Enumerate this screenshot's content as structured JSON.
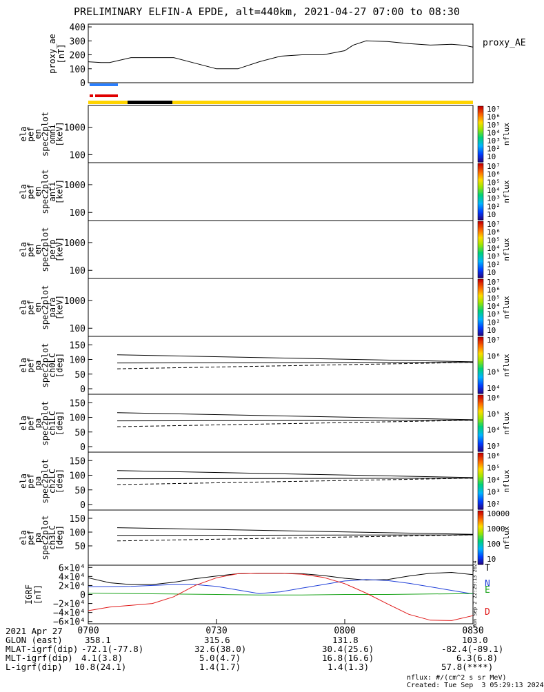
{
  "title": "PRELIMINARY ELFIN-A EPDE, alt=440km, 2021-04-27 07:00 to 08:30",
  "time_labels": [
    "0700",
    "0730",
    "0800",
    "0830"
  ],
  "footer": {
    "date": "2021 Apr 27",
    "rows": [
      {
        "label": "GLON (east)",
        "values": [
          "358.1",
          "315.6",
          "131.8",
          "103.0"
        ]
      },
      {
        "label": "MLAT-igrf(dip)",
        "values": [
          "-72.1(-77.8)",
          "32.6(38.0)",
          "30.4(25.6)",
          "-82.4(-89.1)"
        ]
      },
      {
        "label": "MLT-igrf(dip)",
        "values": [
          "4.1(3.8)",
          "5.0(4.7)",
          "16.8(16.6)",
          "6.3(6.8)"
        ]
      },
      {
        "label": "L-igrf(dip)",
        "values": [
          "10.8(24.1)",
          "1.4(1.7)",
          "1.4(1.3)",
          "57.8(****)"
        ]
      }
    ],
    "units_note": "nflux: #/(cm^2 s sr MeV)",
    "created": "Created: Tue Sep  3 05:29:13 2024",
    "side_stamp": "Mon Sep  2 22:29:13 2024"
  },
  "chart_data": [
    {
      "type": "line",
      "panel": "proxy_ae",
      "ylabel_lines": [
        "proxy_ae",
        "[nT]"
      ],
      "legend": "proxy_AE",
      "ylim": [
        0,
        420
      ],
      "yticks": [
        "400",
        "300",
        "200",
        "100",
        "0"
      ],
      "x": [
        0,
        3,
        5,
        10,
        20,
        30,
        35,
        40,
        45,
        50,
        55,
        60,
        62,
        65,
        70,
        75,
        80,
        85,
        88,
        90
      ],
      "y": [
        150,
        145,
        145,
        180,
        180,
        100,
        100,
        150,
        190,
        200,
        200,
        230,
        270,
        300,
        295,
        280,
        270,
        275,
        268,
        255
      ],
      "x_units": "minutes since 07:00"
    },
    {
      "type": "heatmap",
      "panel": "ela_pef_en_spec2plot_omni",
      "ylabel_lines": [
        "ela",
        "pef",
        "en",
        "spec2plot",
        "omni",
        "[keV]"
      ],
      "yticks": [
        "1000",
        "100"
      ],
      "colorbar_label": "nflux",
      "colorbar_ticks": [
        "10⁷",
        "10⁶",
        "10⁵",
        "10⁴",
        "10³",
        "10²",
        "10"
      ]
    },
    {
      "type": "heatmap",
      "panel": "ela_pef_en_spec2plot_anti",
      "ylabel_lines": [
        "ela",
        "pef",
        "en",
        "spec2plot",
        "anti",
        "[keV]"
      ],
      "yticks": [
        "1000",
        "100"
      ],
      "colorbar_label": "nflux",
      "colorbar_ticks": [
        "10⁷",
        "10⁶",
        "10⁵",
        "10⁴",
        "10³",
        "10²",
        "10"
      ]
    },
    {
      "type": "heatmap",
      "panel": "ela_pef_en_spec2plot_perp",
      "ylabel_lines": [
        "ela",
        "pef",
        "en",
        "spec2plot",
        "perp",
        "[keV]"
      ],
      "yticks": [
        "1000",
        "100"
      ],
      "colorbar_label": "nflux",
      "colorbar_ticks": [
        "10⁷",
        "10⁶",
        "10⁵",
        "10⁴",
        "10³",
        "10²",
        "10"
      ]
    },
    {
      "type": "heatmap",
      "panel": "ela_pef_en_spec2plot_para",
      "ylabel_lines": [
        "ela",
        "pef",
        "en",
        "spec2plot",
        "para",
        "[keV]"
      ],
      "yticks": [
        "1000",
        "100"
      ],
      "colorbar_label": "nflux",
      "colorbar_ticks": [
        "10⁷",
        "10⁶",
        "10⁵",
        "10⁴",
        "10³",
        "10²",
        "10"
      ]
    },
    {
      "type": "heatmap",
      "panel": "ela_pef_pa_spec2plot_ch0LC",
      "ylabel_lines": [
        "ela",
        "pef",
        "pa",
        "spec2plot",
        "ch0LC",
        "[deg]"
      ],
      "yticks": [
        "150",
        "100",
        "50",
        "0"
      ],
      "colorbar_label": "nflux",
      "colorbar_ticks": [
        "10⁷",
        "10⁶",
        "10⁵",
        "10⁴"
      ]
    },
    {
      "type": "heatmap",
      "panel": "ela_pef_pa_spec2plot_ch1LC",
      "ylabel_lines": [
        "ela",
        "pef",
        "pa",
        "spec2plot",
        "ch1LC",
        "[deg]"
      ],
      "yticks": [
        "150",
        "100",
        "50",
        "0"
      ],
      "colorbar_label": "nflux",
      "colorbar_ticks": [
        "10⁶",
        "10⁵",
        "10⁴",
        "10³"
      ]
    },
    {
      "type": "heatmap",
      "panel": "ela_pef_pa_spec2plot_ch2LC",
      "ylabel_lines": [
        "ela",
        "pef",
        "pa",
        "spec2plot",
        "ch2LC",
        "[deg]"
      ],
      "yticks": [
        "150",
        "100",
        "50",
        "0"
      ],
      "colorbar_label": "nflux",
      "colorbar_ticks": [
        "10⁶",
        "10⁵",
        "10⁴",
        "10³",
        "10²"
      ]
    },
    {
      "type": "heatmap",
      "panel": "ela_pef_pa_spec2plot_ch3LC",
      "ylabel_lines": [
        "ela",
        "pef",
        "pa",
        "spec2plot",
        "ch3LC",
        "[deg]"
      ],
      "yticks": [
        "150",
        "100",
        "50"
      ],
      "colorbar_label": "nflux",
      "colorbar_ticks": [
        "10000",
        "1000",
        "100",
        "10"
      ]
    },
    {
      "type": "line",
      "panel": "IGRF",
      "ylabel_lines": [
        "IGRF",
        "[nT]"
      ],
      "yticks": [
        "6×10⁴",
        "4×10⁴",
        "2×10⁴",
        "0",
        "−2×10⁴",
        "−4×10⁴",
        "−6×10⁴"
      ],
      "ylim": [
        -65000,
        65000
      ],
      "x_units": "minutes since 07:00",
      "series": [
        {
          "name": "T",
          "color": "#000000",
          "x": [
            0,
            5,
            10,
            15,
            20,
            25,
            30,
            35,
            40,
            45,
            50,
            55,
            60,
            65,
            70,
            75,
            80,
            85,
            90
          ],
          "y": [
            37000,
            26000,
            22000,
            22000,
            27000,
            35000,
            41000,
            46000,
            47000,
            47000,
            46000,
            42000,
            36000,
            32000,
            33000,
            41000,
            47000,
            49000,
            44000
          ]
        },
        {
          "name": "N",
          "color": "#1f3fd8",
          "x": [
            0,
            5,
            10,
            15,
            20,
            25,
            30,
            35,
            40,
            45,
            50,
            55,
            60,
            65,
            70,
            75,
            80,
            85,
            90
          ],
          "y": [
            17000,
            17500,
            18000,
            20000,
            22000,
            22000,
            18000,
            10000,
            2000,
            6000,
            14000,
            22000,
            30000,
            33000,
            31000,
            25000,
            17000,
            9000,
            1000
          ]
        },
        {
          "name": "E",
          "color": "#1aa31a",
          "x": [
            0,
            10,
            20,
            30,
            40,
            50,
            60,
            70,
            80,
            90
          ],
          "y": [
            3000,
            2000,
            1000,
            0,
            -1000,
            -1000,
            0,
            0,
            1000,
            2000
          ]
        },
        {
          "name": "D",
          "color": "#e01818",
          "x": [
            0,
            5,
            10,
            15,
            20,
            25,
            30,
            35,
            40,
            45,
            50,
            55,
            60,
            65,
            70,
            75,
            80,
            85,
            90
          ],
          "y": [
            -36000,
            -28000,
            -24000,
            -20000,
            -5000,
            20000,
            37000,
            46000,
            47000,
            47000,
            45000,
            38000,
            24000,
            3000,
            -21000,
            -44000,
            -57000,
            -58000,
            -47000
          ]
        }
      ],
      "legend": [
        "T",
        "N",
        "E",
        "D"
      ]
    }
  ]
}
